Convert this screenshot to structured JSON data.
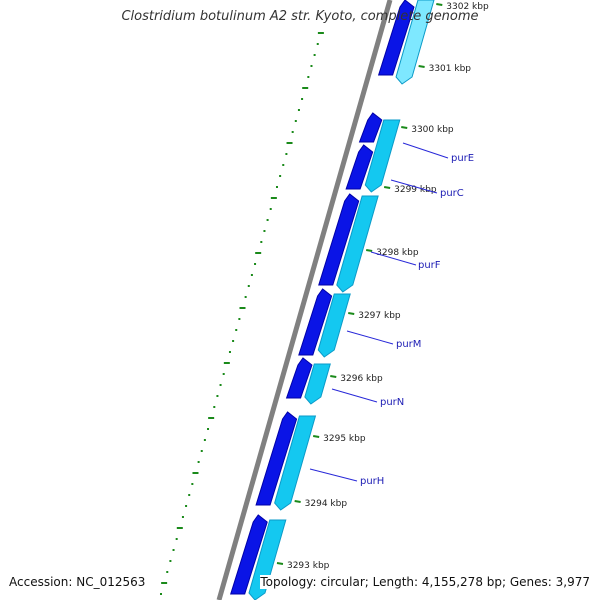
{
  "title": "Clostridium botulinum A2 str. Kyoto, complete genome",
  "footer": {
    "accession": "Accession: NC_012563",
    "topology": "Topology: circular; Length: 4,155,278 bp; Genes: 3,977"
  },
  "colors": {
    "backbone": "#808080",
    "forward_gene": "#0a14e6",
    "forward_gene_dark": "#0000a8",
    "reverse_gene": "#14c8f0",
    "reverse_gene_light": "#7ee8ff",
    "tick": "#1a8a1a",
    "tick_label": "#222222",
    "gene_label": "#1c1cb4",
    "leader": "#2828d8"
  },
  "ticks": [
    {
      "kbp": 3302,
      "label": "3302 kbp",
      "faded": true
    },
    {
      "kbp": 3301,
      "label": "3301 kbp"
    },
    {
      "kbp": 3300,
      "label": "3300 kbp"
    },
    {
      "kbp": 3299,
      "label": "3299 kbp"
    },
    {
      "kbp": 3298,
      "label": "3298 kbp"
    },
    {
      "kbp": 3297,
      "label": "3297 kbp"
    },
    {
      "kbp": 3296,
      "label": "3296 kbp"
    },
    {
      "kbp": 3295,
      "label": "3295 kbp"
    },
    {
      "kbp": 3294,
      "label": "3294 kbp"
    },
    {
      "kbp": 3293,
      "label": "3293 kbp"
    }
  ],
  "genes": [
    {
      "name": "purE"
    },
    {
      "name": "purC"
    },
    {
      "name": "purF"
    },
    {
      "name": "purM"
    },
    {
      "name": "purN"
    },
    {
      "name": "purH"
    }
  ]
}
